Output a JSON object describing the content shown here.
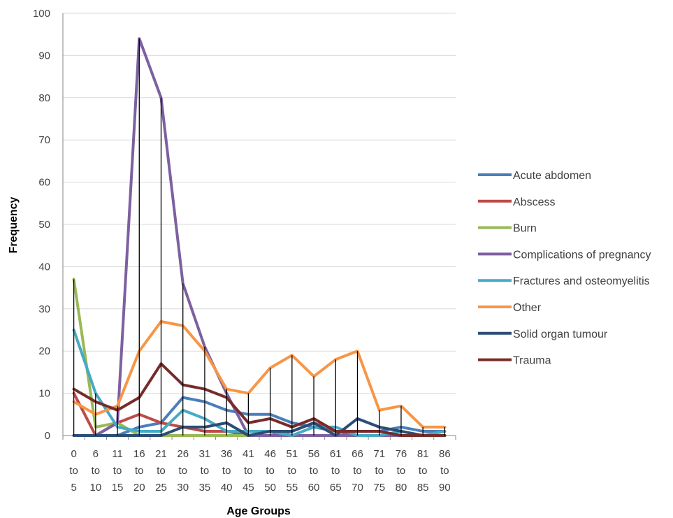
{
  "chart_data": {
    "type": "line",
    "title": "",
    "xlabel": "Age Groups",
    "ylabel": "Frequency",
    "ylim": [
      0,
      100
    ],
    "y_ticks": [
      0,
      10,
      20,
      30,
      40,
      50,
      60,
      70,
      80,
      90,
      100
    ],
    "grid": true,
    "legend_position": "right",
    "drop_lines": true,
    "categories": [
      [
        "0",
        "to",
        "5"
      ],
      [
        "6",
        "to",
        "10"
      ],
      [
        "11",
        "to",
        "15"
      ],
      [
        "16",
        "to",
        "20"
      ],
      [
        "21",
        "to",
        "25"
      ],
      [
        "26",
        "to",
        "30"
      ],
      [
        "31",
        "to",
        "35"
      ],
      [
        "36",
        "to",
        "40"
      ],
      [
        "41",
        "to",
        "45"
      ],
      [
        "46",
        "to",
        "50"
      ],
      [
        "51",
        "to",
        "55"
      ],
      [
        "56",
        "to",
        "60"
      ],
      [
        "61",
        "to",
        "65"
      ],
      [
        "66",
        "to",
        "70"
      ],
      [
        "71",
        "to",
        "75"
      ],
      [
        "76",
        "to",
        "80"
      ],
      [
        "81",
        "to",
        "85"
      ],
      [
        "86",
        "to",
        "90"
      ]
    ],
    "series": [
      {
        "name": "Acute abdomen",
        "color": "#4a7ebb",
        "values": [
          0,
          0,
          0,
          2,
          3,
          9,
          8,
          6,
          5,
          5,
          3,
          2,
          1,
          1,
          1,
          2,
          1,
          1
        ]
      },
      {
        "name": "Abscess",
        "color": "#be4b48",
        "values": [
          10,
          0,
          3,
          5,
          3,
          2,
          1,
          1,
          0,
          0,
          1,
          3,
          1,
          0,
          0,
          0,
          0,
          0
        ]
      },
      {
        "name": "Burn",
        "color": "#98b954",
        "values": [
          37,
          2,
          3,
          0,
          0,
          0,
          0,
          0,
          0,
          1,
          0,
          0,
          0,
          0,
          0,
          0,
          0,
          0
        ]
      },
      {
        "name": "Complications of pregnancy",
        "color": "#7d60a0",
        "values": [
          0,
          0,
          3,
          94,
          80,
          36,
          21,
          10,
          0,
          0,
          0,
          0,
          0,
          0,
          0,
          0,
          0,
          0
        ]
      },
      {
        "name": "Fractures and osteomyelitis",
        "color": "#46aac5",
        "values": [
          25,
          10,
          2,
          1,
          1,
          6,
          4,
          1,
          1,
          1,
          0,
          2,
          2,
          0,
          0,
          1,
          0,
          1
        ]
      },
      {
        "name": "Other",
        "color": "#f79646",
        "values": [
          8,
          5,
          7,
          20,
          27,
          26,
          20,
          11,
          10,
          16,
          19,
          14,
          18,
          20,
          6,
          7,
          2,
          2
        ]
      },
      {
        "name": "Solid organ tumour",
        "color": "#2c4d75",
        "values": [
          0,
          0,
          0,
          0,
          0,
          2,
          2,
          3,
          0,
          1,
          1,
          3,
          0,
          4,
          2,
          1,
          0,
          0
        ]
      },
      {
        "name": "Trauma",
        "color": "#772c2a",
        "values": [
          11,
          8,
          6,
          9,
          17,
          12,
          11,
          9,
          3,
          4,
          2,
          4,
          1,
          1,
          1,
          0,
          0,
          0
        ]
      }
    ]
  }
}
